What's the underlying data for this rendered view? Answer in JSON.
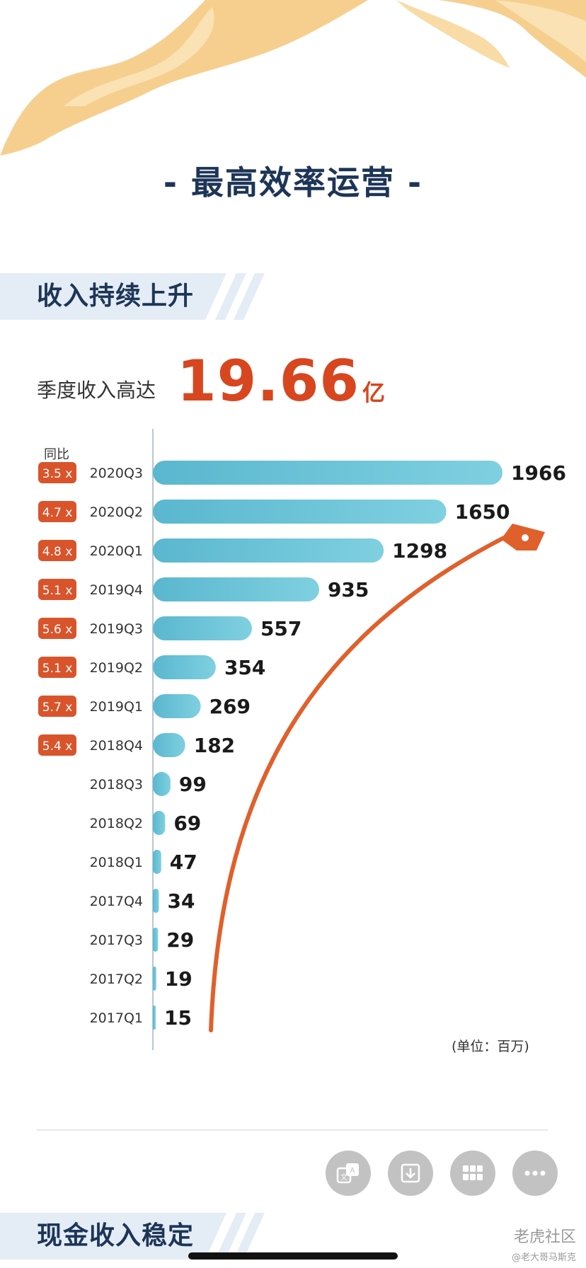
{
  "header": {
    "title": "- 最高效率运营 -"
  },
  "section1": {
    "banner": "收入持续上升",
    "headline_label": "季度收入高达",
    "headline_value": "19.66",
    "headline_unit": "亿"
  },
  "chart_data": {
    "type": "bar",
    "orientation": "horizontal",
    "yoy_header": "同比",
    "unit_note": "(单位：百万)",
    "categories": [
      "2020Q3",
      "2020Q2",
      "2020Q1",
      "2019Q4",
      "2019Q3",
      "2019Q2",
      "2019Q1",
      "2018Q4",
      "2018Q3",
      "2018Q2",
      "2018Q1",
      "2017Q4",
      "2017Q3",
      "2017Q2",
      "2017Q1"
    ],
    "value_labels": [
      "1966",
      "1650",
      "1298",
      "935",
      "557",
      "354",
      "269",
      "182",
      "99",
      "69",
      "47",
      "34",
      "29",
      "19",
      "15"
    ],
    "values": [
      1966,
      1650,
      1298,
      935,
      557,
      354,
      269,
      182,
      99,
      69,
      47,
      34,
      29,
      19,
      15
    ],
    "yoy": [
      "3.5 x",
      "4.7 x",
      "4.8 x",
      "5.1 x",
      "5.6 x",
      "5.1 x",
      "5.7 x",
      "5.4 x",
      null,
      null,
      null,
      null,
      null,
      null,
      null
    ],
    "colors": {
      "bar": "#5ab7cf",
      "yoy_badge": "#d9542b",
      "trend_arrow": "#e0602c"
    }
  },
  "section2": {
    "banner": "现金收入稳定"
  },
  "actions": [
    {
      "icon": "translate-icon"
    },
    {
      "icon": "download-icon"
    },
    {
      "icon": "grid-icon"
    },
    {
      "icon": "more-icon"
    }
  ],
  "watermark": {
    "logo": "老虎社区",
    "user": "@老大哥马斯克"
  }
}
